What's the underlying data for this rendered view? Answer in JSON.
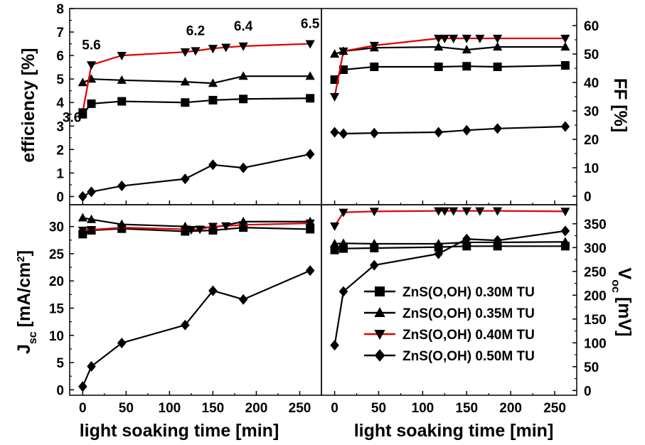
{
  "chart_data": {
    "type": "line",
    "x_label": "light soaking time [min]",
    "x_ticks": [
      0,
      50,
      100,
      150,
      200,
      250
    ],
    "xlim": [
      -15,
      275
    ],
    "legend": {
      "placement": "lower right of bottom-right panel",
      "entries": [
        {
          "label": "ZnS(O,OH) 0.30M TU",
          "marker": "square",
          "color": "#000000"
        },
        {
          "label": "ZnS(O,OH) 0.35M TU",
          "marker": "triangle-up",
          "color": "#000000"
        },
        {
          "label": "ZnS(O,OH) 0.40M TU",
          "marker": "triangle-down",
          "color": "#e00000"
        },
        {
          "label": "ZnS(O,OH) 0.50M TU",
          "marker": "diamond",
          "color": "#000000"
        }
      ]
    },
    "panels": [
      {
        "id": "efficiency",
        "y_label": "efficiency [%]",
        "y_axis_side": "left",
        "ylim": [
          -0.35,
          8.0
        ],
        "y_ticks": [
          0,
          1,
          2,
          3,
          4,
          5,
          6,
          7,
          8
        ],
        "series": [
          {
            "name": "ZnS(O,OH) 0.30M TU",
            "x": [
              0,
              10,
              45,
              118,
              150,
              185,
              262
            ],
            "y": [
              3.5,
              3.95,
              4.05,
              4.0,
              4.1,
              4.15,
              4.18
            ]
          },
          {
            "name": "ZnS(O,OH) 0.35M TU",
            "x": [
              0,
              10,
              45,
              118,
              150,
              185,
              262
            ],
            "y": [
              4.85,
              5.0,
              4.95,
              4.88,
              4.82,
              5.12,
              5.12
            ]
          },
          {
            "name": "ZnS(O,OH) 0.40M TU",
            "x": [
              0,
              10,
              45,
              118,
              130,
              150,
              165,
              185,
              262
            ],
            "y": [
              3.6,
              5.6,
              6.0,
              6.15,
              6.2,
              6.3,
              6.35,
              6.4,
              6.5
            ]
          },
          {
            "name": "ZnS(O,OH) 0.50M TU",
            "x": [
              0,
              10,
              45,
              118,
              150,
              185,
              262
            ],
            "y": [
              0.0,
              0.2,
              0.45,
              0.75,
              1.35,
              1.22,
              1.8
            ]
          }
        ],
        "annotations": [
          {
            "text": "3.6",
            "x": 0,
            "y": 3.6
          },
          {
            "text": "5.6",
            "x": 10,
            "y": 5.6
          },
          {
            "text": "6.2",
            "x": 130,
            "y": 6.2
          },
          {
            "text": "6.4",
            "x": 185,
            "y": 6.4
          },
          {
            "text": "6.5",
            "x": 262,
            "y": 6.5
          }
        ]
      },
      {
        "id": "ff",
        "y_label": "FF [%]",
        "y_axis_side": "right",
        "ylim": [
          -3,
          66
        ],
        "y_ticks": [
          0,
          10,
          20,
          30,
          40,
          50,
          60
        ],
        "series": [
          {
            "name": "ZnS(O,OH) 0.30M TU",
            "x": [
              0,
              10,
              45,
              118,
              150,
              185,
              262
            ],
            "y": [
              41,
              44.5,
              45.5,
              45.5,
              45.7,
              45.5,
              46
            ]
          },
          {
            "name": "ZnS(O,OH) 0.35M TU",
            "x": [
              0,
              10,
              45,
              118,
              150,
              185,
              262
            ],
            "y": [
              50,
              51,
              52.2,
              52.5,
              51.5,
              52.5,
              52.5
            ]
          },
          {
            "name": "ZnS(O,OH) 0.40M TU",
            "x": [
              0,
              10,
              45,
              118,
              125,
              135,
              150,
              165,
              185,
              262
            ],
            "y": [
              35,
              51,
              53,
              55.5,
              55.5,
              55.5,
              55.5,
              55.5,
              55.5,
              55.5
            ]
          },
          {
            "name": "ZnS(O,OH) 0.50M TU",
            "x": [
              0,
              10,
              45,
              118,
              150,
              185,
              262
            ],
            "y": [
              22.5,
              22.0,
              22.2,
              22.5,
              23.2,
              23.8,
              24.5
            ]
          }
        ]
      },
      {
        "id": "jsc",
        "y_label": "J_sc [mA/cm^2]",
        "y_axis_side": "left",
        "ylim": [
          -1,
          34
        ],
        "y_ticks": [
          0,
          5,
          10,
          15,
          20,
          25,
          30
        ],
        "series": [
          {
            "name": "ZnS(O,OH) 0.30M TU",
            "x": [
              0,
              10,
              45,
              118,
              150,
              185,
              262
            ],
            "y": [
              28.6,
              29.3,
              29.6,
              29.1,
              29.3,
              29.8,
              29.5
            ]
          },
          {
            "name": "ZnS(O,OH) 0.35M TU",
            "x": [
              0,
              10,
              45,
              118,
              150,
              185,
              262
            ],
            "y": [
              31.6,
              31.3,
              30.4,
              30.0,
              29.8,
              30.9,
              30.9
            ]
          },
          {
            "name": "ZnS(O,OH) 0.40M TU",
            "x": [
              0,
              10,
              45,
              118,
              125,
              135,
              150,
              165,
              185,
              262
            ],
            "y": [
              29.3,
              29.4,
              29.8,
              29.5,
              29.4,
              29.5,
              30.0,
              30.1,
              30.3,
              30.6
            ]
          },
          {
            "name": "ZnS(O,OH) 0.50M TU",
            "x": [
              0,
              10,
              45,
              118,
              150,
              185,
              262
            ],
            "y": [
              0.6,
              4.3,
              8.6,
              11.9,
              18.2,
              16.6,
              21.9
            ]
          }
        ]
      },
      {
        "id": "voc",
        "y_label": "V_oc [mV]",
        "y_axis_side": "right",
        "ylim": [
          -10,
          390
        ],
        "y_ticks": [
          0,
          50,
          100,
          150,
          200,
          250,
          300,
          350
        ],
        "series": [
          {
            "name": "ZnS(O,OH) 0.30M TU",
            "x": [
              0,
              10,
              45,
              118,
              150,
              185,
              262
            ],
            "y": [
              295,
              298,
              299,
              301,
              303,
              303,
              303
            ]
          },
          {
            "name": "ZnS(O,OH) 0.35M TU",
            "x": [
              0,
              10,
              45,
              118,
              150,
              185,
              262
            ],
            "y": [
              308,
              309,
              308,
              308,
              311,
              311,
              312
            ]
          },
          {
            "name": "ZnS(O,OH) 0.40M TU",
            "x": [
              0,
              10,
              45,
              118,
              125,
              135,
              150,
              165,
              185,
              262
            ],
            "y": [
              345,
              374,
              376,
              377,
              377,
              377,
              377,
              377,
              377,
              376
            ]
          },
          {
            "name": "ZnS(O,OH) 0.50M TU",
            "x": [
              0,
              10,
              45,
              118,
              150,
              185,
              262
            ],
            "y": [
              95,
              208,
              263,
              287,
              318,
              315,
              335
            ]
          }
        ]
      }
    ]
  }
}
